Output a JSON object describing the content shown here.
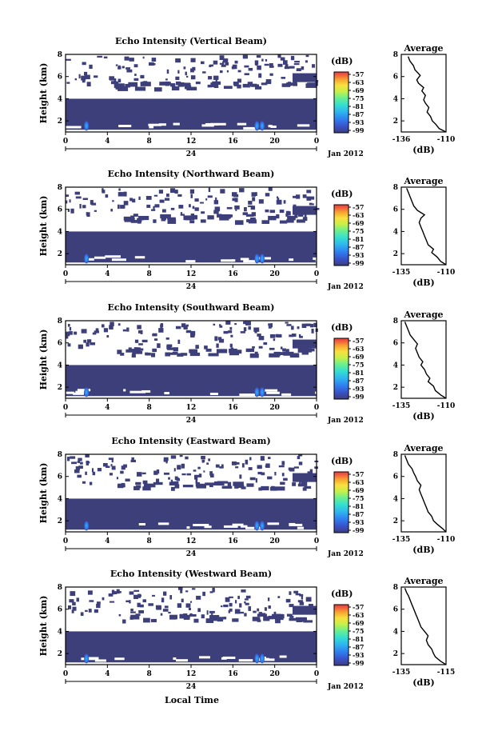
{
  "figure": {
    "xlabel": "Local Time",
    "date_label": "Jan 2012",
    "day_label": "24",
    "ylabel": "Height (km)",
    "colorbar_unit": "(dB)",
    "average_title": "Average",
    "average_xlabel": "(dB)"
  },
  "colors": {
    "colormap": [
      "#3d3f7a",
      "#3a4fc4",
      "#2f7ef0",
      "#2fb4f0",
      "#35dfd0",
      "#6ff08a",
      "#c8f048",
      "#f8e040",
      "#f8a030",
      "#f06040",
      "#e83a3a"
    ],
    "background_echo": "#3d3f7a"
  },
  "chart_data": [
    {
      "type": "heatmap",
      "title": "Echo Intensity (Vertical Beam)",
      "ylabel": "Height (km)",
      "xlabel": "",
      "x_ticks": [
        "0",
        "4",
        "8",
        "12",
        "16",
        "20",
        "0"
      ],
      "y_ticks": [
        "2",
        "4",
        "6",
        "8"
      ],
      "xlim": [
        0,
        24
      ],
      "ylim": [
        1,
        8
      ],
      "colorbar": {
        "label": "(dB)",
        "ticks": [
          "-57",
          "-63",
          "-69",
          "-75",
          "-81",
          "-87",
          "-93",
          "-99"
        ]
      },
      "average_profile": {
        "title": "Average",
        "xlabel": "(dB)",
        "x_ticks": [
          "-136",
          "-110"
        ],
        "xlim": [
          -136,
          -110
        ],
        "ylim": [
          1,
          8
        ],
        "y_ticks": [
          "2",
          "4",
          "6",
          "8"
        ],
        "x": [
          -110,
          -114,
          -116,
          -118,
          -119,
          -121,
          -120,
          -122,
          -123,
          -122,
          -124,
          -123,
          -126,
          -127,
          -125,
          -128,
          -129,
          -131,
          -132
        ],
        "y": [
          1.0,
          1.3,
          1.7,
          2.0,
          2.4,
          2.8,
          3.2,
          3.6,
          3.9,
          4.3,
          4.7,
          5.0,
          5.4,
          5.7,
          6.1,
          6.6,
          7.0,
          7.4,
          7.8
        ]
      }
    },
    {
      "type": "heatmap",
      "title": "Echo Intensity (Northward Beam)",
      "ylabel": "Height (km)",
      "xlabel": "",
      "x_ticks": [
        "0",
        "4",
        "8",
        "12",
        "16",
        "20",
        "0"
      ],
      "y_ticks": [
        "2",
        "4",
        "6",
        "8"
      ],
      "xlim": [
        0,
        24
      ],
      "ylim": [
        1,
        8
      ],
      "colorbar": {
        "label": "(dB)",
        "ticks": [
          "-57",
          "-63",
          "-69",
          "-75",
          "-81",
          "-87",
          "-93",
          "-99"
        ]
      },
      "average_profile": {
        "title": "Average",
        "xlabel": "(dB)",
        "x_ticks": [
          "-135",
          "-110"
        ],
        "xlim": [
          -135,
          -110
        ],
        "ylim": [
          1,
          8
        ],
        "y_ticks": [
          "2",
          "4",
          "6",
          "8"
        ],
        "x": [
          -110,
          -113,
          -115,
          -118,
          -117,
          -120,
          -121,
          -122,
          -123,
          -124,
          -125,
          -124,
          -122,
          -126,
          -128,
          -129,
          -130,
          -131,
          -132
        ],
        "y": [
          1.0,
          1.3,
          1.7,
          2.1,
          2.4,
          2.8,
          3.2,
          3.6,
          4.0,
          4.4,
          4.8,
          5.2,
          5.5,
          5.9,
          6.3,
          6.7,
          7.1,
          7.5,
          7.9
        ]
      }
    },
    {
      "type": "heatmap",
      "title": "Echo Intensity (Southward Beam)",
      "ylabel": "Height (km)",
      "xlabel": "",
      "x_ticks": [
        "0",
        "4",
        "8",
        "12",
        "16",
        "20",
        "0"
      ],
      "y_ticks": [
        "2",
        "4",
        "6",
        "8"
      ],
      "xlim": [
        0,
        24
      ],
      "ylim": [
        1,
        8
      ],
      "colorbar": {
        "label": "(dB)",
        "ticks": [
          "-57",
          "-63",
          "-69",
          "-75",
          "-81",
          "-87",
          "-93",
          "-99"
        ]
      },
      "average_profile": {
        "title": "Average",
        "xlabel": "(dB)",
        "x_ticks": [
          "-135",
          "-110"
        ],
        "xlim": [
          -135,
          -110
        ],
        "ylim": [
          1,
          8
        ],
        "y_ticks": [
          "2",
          "4",
          "6",
          "8"
        ],
        "x": [
          -110,
          -113,
          -116,
          -117,
          -120,
          -119,
          -121,
          -122,
          -124,
          -123,
          -125,
          -126,
          -127,
          -126,
          -128,
          -130,
          -131,
          -132,
          -133
        ],
        "y": [
          1.0,
          1.3,
          1.7,
          2.1,
          2.5,
          2.8,
          3.2,
          3.6,
          4.0,
          4.3,
          4.7,
          5.1,
          5.5,
          5.9,
          6.3,
          6.7,
          7.1,
          7.5,
          7.9
        ]
      }
    },
    {
      "type": "heatmap",
      "title": "Echo Intensity (Eastward Beam)",
      "ylabel": "Height (km)",
      "xlabel": "",
      "x_ticks": [
        "0",
        "4",
        "8",
        "12",
        "16",
        "20",
        "0"
      ],
      "y_ticks": [
        "2",
        "4",
        "6",
        "8"
      ],
      "xlim": [
        0,
        24
      ],
      "ylim": [
        1,
        8
      ],
      "colorbar": {
        "label": "(dB)",
        "ticks": [
          "-57",
          "-63",
          "-69",
          "-75",
          "-81",
          "-87",
          "-93",
          "-99"
        ]
      },
      "average_profile": {
        "title": "Average",
        "xlabel": "(dB)",
        "x_ticks": [
          "-135",
          "-110"
        ],
        "xlim": [
          -135,
          -110
        ],
        "ylim": [
          1,
          8
        ],
        "y_ticks": [
          "2",
          "4",
          "6",
          "8"
        ],
        "x": [
          -110,
          -112,
          -115,
          -117,
          -118,
          -120,
          -121,
          -122,
          -123,
          -124,
          -125,
          -124,
          -126,
          -127,
          -128,
          -129,
          -131,
          -132,
          -133
        ],
        "y": [
          1.0,
          1.3,
          1.7,
          2.0,
          2.4,
          2.8,
          3.2,
          3.6,
          4.0,
          4.4,
          4.8,
          5.2,
          5.6,
          6.0,
          6.3,
          6.7,
          7.1,
          7.5,
          7.9
        ]
      }
    },
    {
      "type": "heatmap",
      "title": "Echo Intensity (Westward Beam)",
      "ylabel": "Height (km)",
      "xlabel": "Local Time",
      "x_ticks": [
        "0",
        "4",
        "8",
        "12",
        "16",
        "20",
        "0"
      ],
      "y_ticks": [
        "2",
        "4",
        "6",
        "8"
      ],
      "xlim": [
        0,
        24
      ],
      "ylim": [
        1,
        8
      ],
      "colorbar": {
        "label": "(dB)",
        "ticks": [
          "-57",
          "-63",
          "-69",
          "-75",
          "-81",
          "-87",
          "-93",
          "-99"
        ]
      },
      "average_profile": {
        "title": "Average",
        "xlabel": "(dB)",
        "x_ticks": [
          "-135",
          "-115"
        ],
        "xlim": [
          -135,
          -110
        ],
        "ylim": [
          1,
          8
        ],
        "y_ticks": [
          "2",
          "4",
          "6",
          "8"
        ],
        "x": [
          -110,
          -113,
          -116,
          -117,
          -118,
          -120,
          -121,
          -120,
          -122,
          -124,
          -125,
          -126,
          -127,
          -128,
          -129,
          -130,
          -131,
          -132,
          -133
        ],
        "y": [
          1.0,
          1.3,
          1.7,
          2.0,
          2.4,
          2.8,
          3.2,
          3.6,
          4.0,
          4.4,
          4.8,
          5.2,
          5.6,
          6.0,
          6.4,
          6.8,
          7.2,
          7.5,
          7.9
        ]
      }
    }
  ]
}
